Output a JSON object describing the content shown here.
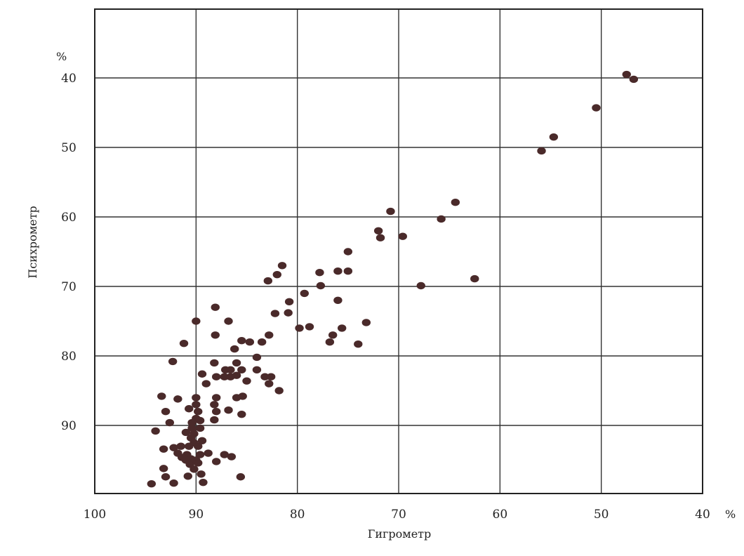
{
  "chart_data": {
    "type": "scatter",
    "title": "",
    "xlabel": "Гигрометр",
    "ylabel": "Психрометр",
    "x_unit": "%",
    "y_unit": "%",
    "xlim": [
      100,
      40
    ],
    "ylim": [
      30,
      99
    ],
    "x_reversed": true,
    "y_reversed": true,
    "x_ticks": [
      100,
      90,
      80,
      70,
      60,
      50,
      40
    ],
    "y_ticks": [
      40,
      50,
      60,
      70,
      80,
      90
    ],
    "grid": true,
    "points": [
      {
        "x": 47.5,
        "y": 39.5
      },
      {
        "x": 46.8,
        "y": 40.2
      },
      {
        "x": 50.5,
        "y": 44.3
      },
      {
        "x": 54.7,
        "y": 48.5
      },
      {
        "x": 55.9,
        "y": 50.5
      },
      {
        "x": 64.4,
        "y": 57.9
      },
      {
        "x": 65.8,
        "y": 60.3
      },
      {
        "x": 70.8,
        "y": 59.2
      },
      {
        "x": 72.0,
        "y": 62.0
      },
      {
        "x": 71.8,
        "y": 63.0
      },
      {
        "x": 69.6,
        "y": 62.8
      },
      {
        "x": 62.5,
        "y": 68.9
      },
      {
        "x": 67.8,
        "y": 69.9
      },
      {
        "x": 75.0,
        "y": 65.0
      },
      {
        "x": 75.0,
        "y": 67.8
      },
      {
        "x": 76.0,
        "y": 67.8
      },
      {
        "x": 77.8,
        "y": 68.0
      },
      {
        "x": 77.7,
        "y": 69.9
      },
      {
        "x": 76.0,
        "y": 72.0
      },
      {
        "x": 73.2,
        "y": 75.2
      },
      {
        "x": 75.6,
        "y": 76.0
      },
      {
        "x": 76.5,
        "y": 77.0
      },
      {
        "x": 76.8,
        "y": 78.0
      },
      {
        "x": 74.0,
        "y": 78.3
      },
      {
        "x": 78.8,
        "y": 75.8
      },
      {
        "x": 79.8,
        "y": 76.0
      },
      {
        "x": 79.3,
        "y": 71.0
      },
      {
        "x": 80.8,
        "y": 72.2
      },
      {
        "x": 80.9,
        "y": 73.8
      },
      {
        "x": 81.5,
        "y": 67.0
      },
      {
        "x": 82.0,
        "y": 68.3
      },
      {
        "x": 82.9,
        "y": 69.2
      },
      {
        "x": 82.2,
        "y": 73.9
      },
      {
        "x": 84.0,
        "y": 80.2
      },
      {
        "x": 84.7,
        "y": 78.0
      },
      {
        "x": 85.5,
        "y": 77.8
      },
      {
        "x": 83.5,
        "y": 78.0
      },
      {
        "x": 82.8,
        "y": 77.0
      },
      {
        "x": 86.2,
        "y": 79.0
      },
      {
        "x": 86.8,
        "y": 75.0
      },
      {
        "x": 88.1,
        "y": 73.0
      },
      {
        "x": 88.1,
        "y": 77.0
      },
      {
        "x": 88.2,
        "y": 81.0
      },
      {
        "x": 89.4,
        "y": 82.6
      },
      {
        "x": 88.0,
        "y": 83.0
      },
      {
        "x": 87.1,
        "y": 82.0
      },
      {
        "x": 86.6,
        "y": 82.0
      },
      {
        "x": 86.0,
        "y": 81.0
      },
      {
        "x": 86.0,
        "y": 82.8
      },
      {
        "x": 85.5,
        "y": 82.0
      },
      {
        "x": 85.0,
        "y": 83.6
      },
      {
        "x": 87.2,
        "y": 83.0
      },
      {
        "x": 86.6,
        "y": 83.0
      },
      {
        "x": 84.0,
        "y": 82.0
      },
      {
        "x": 83.2,
        "y": 83.0
      },
      {
        "x": 82.6,
        "y": 83.0
      },
      {
        "x": 82.8,
        "y": 84.0
      },
      {
        "x": 81.8,
        "y": 85.0
      },
      {
        "x": 85.4,
        "y": 85.8
      },
      {
        "x": 86.0,
        "y": 86.0
      },
      {
        "x": 85.5,
        "y": 88.4
      },
      {
        "x": 86.8,
        "y": 87.8
      },
      {
        "x": 88.0,
        "y": 86.0
      },
      {
        "x": 88.2,
        "y": 87.0
      },
      {
        "x": 88.0,
        "y": 88.0
      },
      {
        "x": 88.2,
        "y": 89.2
      },
      {
        "x": 89.0,
        "y": 84.0
      },
      {
        "x": 90.0,
        "y": 75.0
      },
      {
        "x": 91.2,
        "y": 78.2
      },
      {
        "x": 92.3,
        "y": 80.8
      },
      {
        "x": 90.0,
        "y": 86.0
      },
      {
        "x": 90.0,
        "y": 87.0
      },
      {
        "x": 90.7,
        "y": 87.6
      },
      {
        "x": 89.8,
        "y": 88.0
      },
      {
        "x": 91.8,
        "y": 86.2
      },
      {
        "x": 93.4,
        "y": 85.8
      },
      {
        "x": 93.0,
        "y": 88.0
      },
      {
        "x": 92.6,
        "y": 89.6
      },
      {
        "x": 90.0,
        "y": 89.0
      },
      {
        "x": 89.6,
        "y": 89.3
      },
      {
        "x": 90.4,
        "y": 89.6
      },
      {
        "x": 90.4,
        "y": 90.4
      },
      {
        "x": 89.6,
        "y": 90.4
      },
      {
        "x": 91.0,
        "y": 91.0
      },
      {
        "x": 90.2,
        "y": 91.2
      },
      {
        "x": 90.5,
        "y": 91.8
      },
      {
        "x": 90.2,
        "y": 92.5
      },
      {
        "x": 89.4,
        "y": 92.2
      },
      {
        "x": 91.5,
        "y": 93.0
      },
      {
        "x": 90.7,
        "y": 93.0
      },
      {
        "x": 89.8,
        "y": 93.0
      },
      {
        "x": 93.2,
        "y": 93.4
      },
      {
        "x": 92.2,
        "y": 93.2
      },
      {
        "x": 94.0,
        "y": 90.8
      },
      {
        "x": 91.8,
        "y": 94.0
      },
      {
        "x": 90.9,
        "y": 94.2
      },
      {
        "x": 89.6,
        "y": 94.2
      },
      {
        "x": 88.8,
        "y": 94.0
      },
      {
        "x": 87.2,
        "y": 94.2
      },
      {
        "x": 86.5,
        "y": 94.5
      },
      {
        "x": 91.4,
        "y": 94.6
      },
      {
        "x": 90.5,
        "y": 94.8
      },
      {
        "x": 91.0,
        "y": 95.0
      },
      {
        "x": 90.6,
        "y": 95.6
      },
      {
        "x": 90.0,
        "y": 95.0
      },
      {
        "x": 90.2,
        "y": 96.3
      },
      {
        "x": 89.8,
        "y": 95.4
      },
      {
        "x": 88.0,
        "y": 95.2
      },
      {
        "x": 93.2,
        "y": 96.2
      },
      {
        "x": 93.0,
        "y": 97.4
      },
      {
        "x": 90.8,
        "y": 97.3
      },
      {
        "x": 89.5,
        "y": 97.0
      },
      {
        "x": 85.6,
        "y": 97.4
      },
      {
        "x": 94.4,
        "y": 98.4
      },
      {
        "x": 92.2,
        "y": 98.3
      },
      {
        "x": 89.3,
        "y": 98.2
      }
    ]
  }
}
